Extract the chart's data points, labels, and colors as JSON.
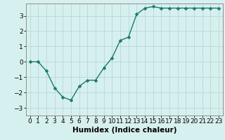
{
  "x": [
    0,
    1,
    2,
    3,
    4,
    5,
    6,
    7,
    8,
    9,
    10,
    11,
    12,
    13,
    14,
    15,
    16,
    17,
    18,
    19,
    20,
    21,
    22,
    23
  ],
  "y": [
    0.0,
    0.0,
    -0.6,
    -1.7,
    -2.3,
    -2.5,
    -1.6,
    -1.2,
    -1.2,
    -0.4,
    0.25,
    1.4,
    1.6,
    3.1,
    3.5,
    3.6,
    3.5,
    3.5,
    3.5,
    3.5,
    3.5,
    3.5,
    3.5,
    3.5
  ],
  "line_color": "#1a7a6a",
  "marker": "D",
  "markersize": 2.5,
  "linewidth": 1.0,
  "bg_color": "#d6f0ef",
  "grid_color": "#b8d8d5",
  "xlabel": "Humidex (Indice chaleur)",
  "xlabel_fontsize": 7.5,
  "tick_fontsize": 6.5,
  "ylim": [
    -3.5,
    3.8
  ],
  "yticks": [
    -3,
    -2,
    -1,
    0,
    1,
    2,
    3
  ],
  "xlim": [
    -0.5,
    23.5
  ],
  "xticks": [
    0,
    1,
    2,
    3,
    4,
    5,
    6,
    7,
    8,
    9,
    10,
    11,
    12,
    13,
    14,
    15,
    16,
    17,
    18,
    19,
    20,
    21,
    22,
    23
  ]
}
